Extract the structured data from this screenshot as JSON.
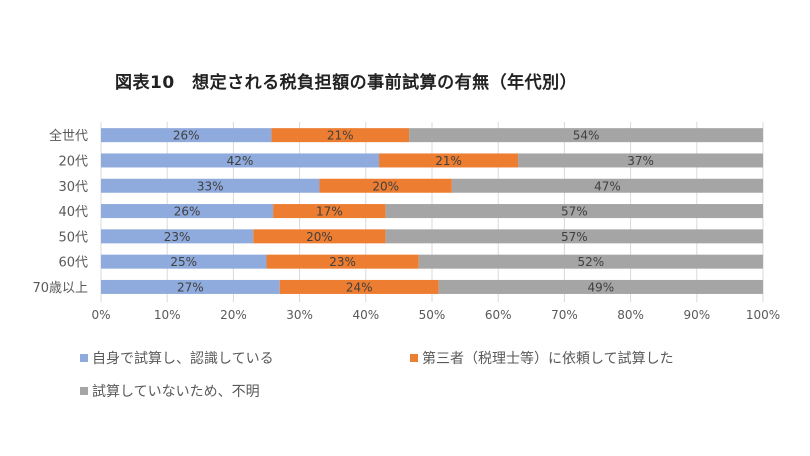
{
  "chart_data": {
    "type": "bar",
    "orientation": "horizontal",
    "stacked": true,
    "title": "図表10　想定される税負担額の事前試算の有無（年代別）",
    "categories": [
      "全世代",
      "20代",
      "30代",
      "40代",
      "50代",
      "60代",
      "70歳以上"
    ],
    "series": [
      {
        "name": "自身で試算し、認識している",
        "color": "#8faadc",
        "values": [
          26,
          42,
          33,
          26,
          23,
          25,
          27
        ]
      },
      {
        "name": "第三者（税理士等）に依頼して試算した",
        "color": "#ed7d31",
        "values": [
          21,
          21,
          20,
          17,
          20,
          23,
          24
        ]
      },
      {
        "name": "試算していないため、不明",
        "color": "#a5a5a5",
        "values": [
          54,
          37,
          47,
          57,
          57,
          52,
          49
        ]
      }
    ],
    "xlim": [
      0,
      100
    ],
    "x_ticks": [
      "0%",
      "10%",
      "20%",
      "30%",
      "40%",
      "50%",
      "60%",
      "70%",
      "80%",
      "90%",
      "100%"
    ],
    "grid": true,
    "legend_position": "bottom",
    "xlabel": "",
    "ylabel": ""
  }
}
